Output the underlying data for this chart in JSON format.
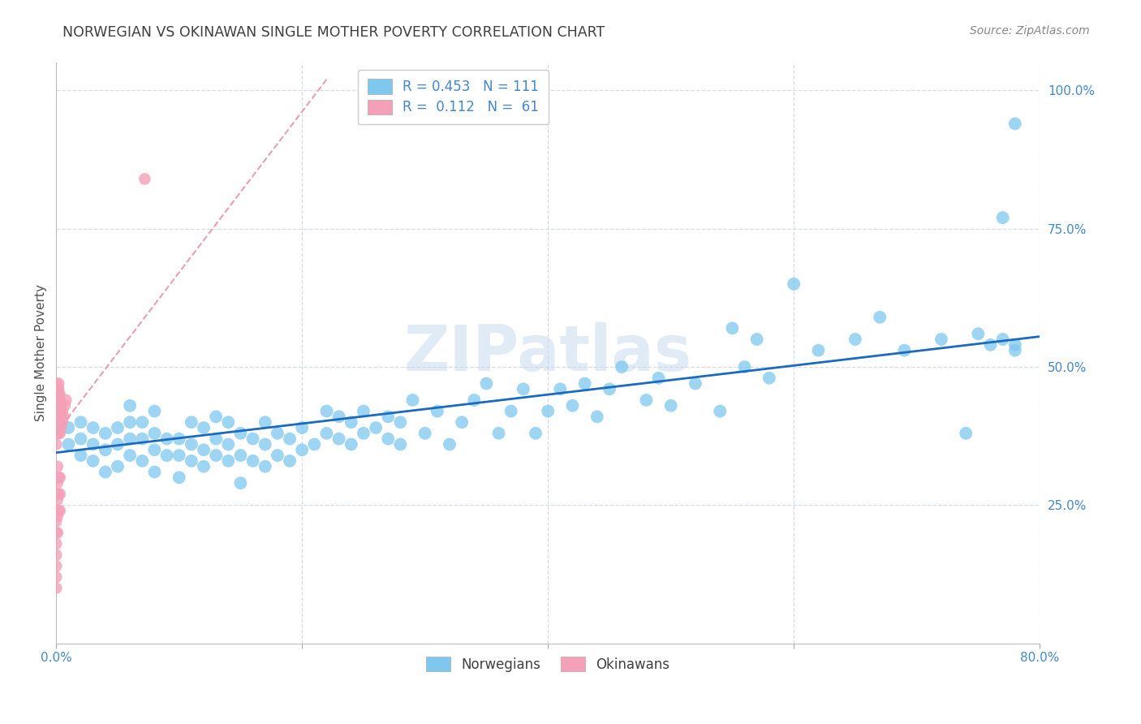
{
  "title": "NORWEGIAN VS OKINAWAN SINGLE MOTHER POVERTY CORRELATION CHART",
  "source": "Source: ZipAtlas.com",
  "ylabel": "Single Mother Poverty",
  "blue_color": "#7ec8f0",
  "pink_color": "#f4a0b8",
  "blue_line_color": "#1a6abf",
  "pink_line_color": "#e8a0b0",
  "title_color": "#404040",
  "axis_color": "#4488cc",
  "grid_color": "#d8dce8",
  "watermark": "ZIPatlas",
  "xmin": 0.0,
  "xmax": 0.8,
  "ymin": 0.0,
  "ymax": 1.05,
  "blue_line_x0": 0.0,
  "blue_line_y0": 0.345,
  "blue_line_x1": 0.8,
  "blue_line_y1": 0.555,
  "pink_line_x0": 0.0,
  "pink_line_y0": 0.38,
  "pink_line_x1": 0.22,
  "pink_line_y1": 1.02,
  "norwegians_x": [
    0.01,
    0.01,
    0.02,
    0.02,
    0.02,
    0.03,
    0.03,
    0.03,
    0.04,
    0.04,
    0.04,
    0.05,
    0.05,
    0.05,
    0.06,
    0.06,
    0.06,
    0.06,
    0.07,
    0.07,
    0.07,
    0.08,
    0.08,
    0.08,
    0.08,
    0.09,
    0.09,
    0.1,
    0.1,
    0.1,
    0.11,
    0.11,
    0.11,
    0.12,
    0.12,
    0.12,
    0.13,
    0.13,
    0.13,
    0.14,
    0.14,
    0.14,
    0.15,
    0.15,
    0.15,
    0.16,
    0.16,
    0.17,
    0.17,
    0.17,
    0.18,
    0.18,
    0.19,
    0.19,
    0.2,
    0.2,
    0.21,
    0.22,
    0.22,
    0.23,
    0.23,
    0.24,
    0.24,
    0.25,
    0.25,
    0.26,
    0.27,
    0.27,
    0.28,
    0.28,
    0.29,
    0.3,
    0.31,
    0.32,
    0.33,
    0.34,
    0.35,
    0.36,
    0.37,
    0.38,
    0.39,
    0.4,
    0.41,
    0.42,
    0.43,
    0.44,
    0.45,
    0.46,
    0.48,
    0.49,
    0.5,
    0.52,
    0.54,
    0.55,
    0.56,
    0.57,
    0.58,
    0.6,
    0.62,
    0.65,
    0.67,
    0.69,
    0.72,
    0.74,
    0.75,
    0.76,
    0.77,
    0.77,
    0.78,
    0.78,
    0.78
  ],
  "norwegians_y": [
    0.36,
    0.39,
    0.34,
    0.37,
    0.4,
    0.33,
    0.36,
    0.39,
    0.31,
    0.35,
    0.38,
    0.32,
    0.36,
    0.39,
    0.34,
    0.37,
    0.4,
    0.43,
    0.33,
    0.37,
    0.4,
    0.31,
    0.35,
    0.38,
    0.42,
    0.34,
    0.37,
    0.3,
    0.34,
    0.37,
    0.33,
    0.36,
    0.4,
    0.32,
    0.35,
    0.39,
    0.34,
    0.37,
    0.41,
    0.33,
    0.36,
    0.4,
    0.29,
    0.34,
    0.38,
    0.33,
    0.37,
    0.32,
    0.36,
    0.4,
    0.34,
    0.38,
    0.33,
    0.37,
    0.35,
    0.39,
    0.36,
    0.38,
    0.42,
    0.37,
    0.41,
    0.36,
    0.4,
    0.38,
    0.42,
    0.39,
    0.37,
    0.41,
    0.36,
    0.4,
    0.44,
    0.38,
    0.42,
    0.36,
    0.4,
    0.44,
    0.47,
    0.38,
    0.42,
    0.46,
    0.38,
    0.42,
    0.46,
    0.43,
    0.47,
    0.41,
    0.46,
    0.5,
    0.44,
    0.48,
    0.43,
    0.47,
    0.42,
    0.57,
    0.5,
    0.55,
    0.48,
    0.65,
    0.53,
    0.55,
    0.59,
    0.53,
    0.55,
    0.38,
    0.56,
    0.54,
    0.55,
    0.77,
    0.94,
    0.54,
    0.53
  ],
  "okinawans_x": [
    0.0,
    0.0,
    0.0,
    0.0,
    0.0,
    0.0,
    0.0,
    0.0,
    0.0,
    0.0,
    0.0,
    0.0,
    0.0,
    0.0,
    0.0,
    0.0,
    0.0,
    0.001,
    0.001,
    0.001,
    0.001,
    0.001,
    0.001,
    0.001,
    0.001,
    0.001,
    0.001,
    0.001,
    0.001,
    0.001,
    0.002,
    0.002,
    0.002,
    0.002,
    0.002,
    0.002,
    0.002,
    0.002,
    0.002,
    0.002,
    0.002,
    0.002,
    0.003,
    0.003,
    0.003,
    0.003,
    0.003,
    0.003,
    0.003,
    0.003,
    0.003,
    0.003,
    0.004,
    0.004,
    0.004,
    0.005,
    0.005,
    0.006,
    0.007,
    0.008,
    0.072
  ],
  "okinawans_y": [
    0.36,
    0.38,
    0.39,
    0.41,
    0.42,
    0.43,
    0.44,
    0.45,
    0.46,
    0.47,
    0.1,
    0.12,
    0.14,
    0.16,
    0.18,
    0.2,
    0.22,
    0.38,
    0.4,
    0.41,
    0.42,
    0.43,
    0.44,
    0.45,
    0.46,
    0.2,
    0.23,
    0.26,
    0.29,
    0.32,
    0.38,
    0.4,
    0.41,
    0.42,
    0.43,
    0.44,
    0.45,
    0.46,
    0.47,
    0.24,
    0.27,
    0.3,
    0.38,
    0.4,
    0.41,
    0.42,
    0.43,
    0.44,
    0.45,
    0.24,
    0.27,
    0.3,
    0.39,
    0.41,
    0.43,
    0.4,
    0.42,
    0.41,
    0.43,
    0.44,
    0.84
  ]
}
